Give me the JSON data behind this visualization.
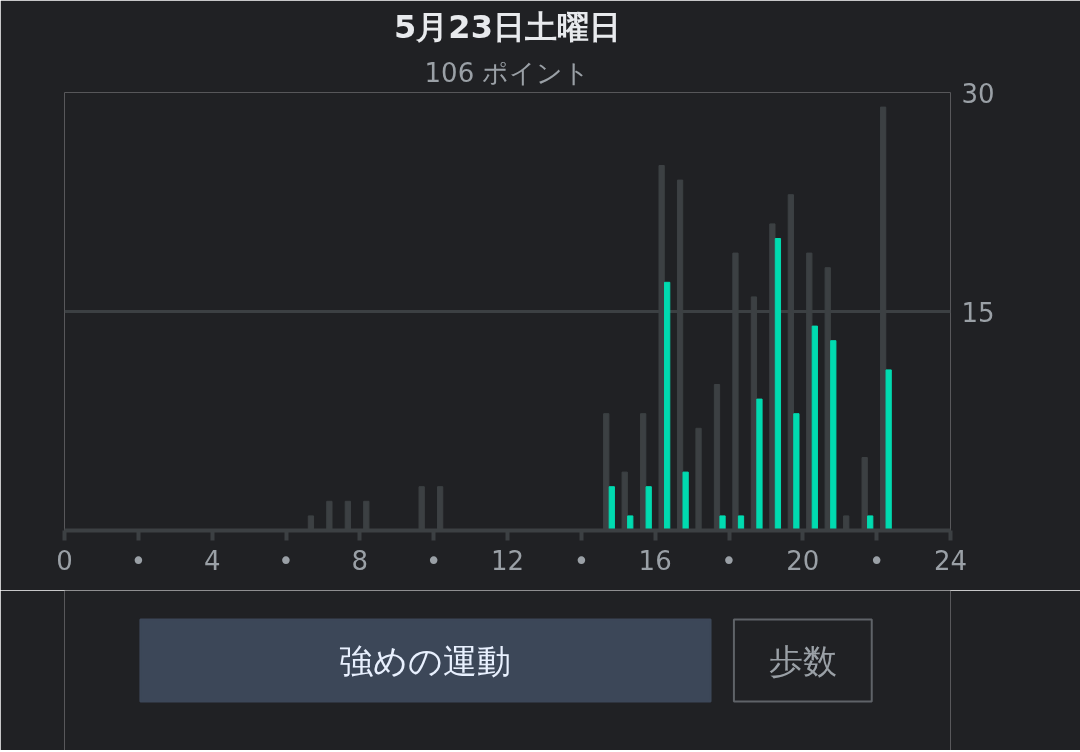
{
  "chart_data": {
    "type": "bar",
    "title": "5月23日土曜日",
    "subtitle": "106 ポイント",
    "x": [
      6.75,
      7.25,
      7.75,
      8.25,
      9.75,
      10.25,
      14.75,
      15.25,
      15.75,
      16.25,
      16.75,
      17.25,
      17.75,
      18.25,
      18.75,
      19.25,
      19.75,
      20.25,
      20.75,
      21.25,
      21.75,
      22.25
    ],
    "series": [
      {
        "color": "#3c4043",
        "values": [
          1,
          2,
          2,
          2,
          3,
          3,
          8,
          4,
          8,
          25,
          24,
          7,
          10,
          19,
          16,
          21,
          23,
          19,
          18,
          1,
          5,
          29
        ]
      },
      {
        "color": "#00dbb0",
        "values": [
          null,
          null,
          null,
          null,
          null,
          null,
          3,
          1,
          3,
          17,
          4,
          null,
          1,
          1,
          9,
          20,
          8,
          14,
          13,
          null,
          1,
          11
        ]
      }
    ],
    "xlim": [
      0,
      24
    ],
    "xticks": [
      0,
      {
        "value": 2,
        "label": "•"
      },
      4,
      {
        "value": 6,
        "label": "•"
      },
      8,
      {
        "value": 10,
        "label": "•"
      },
      12,
      {
        "value": 14,
        "label": "•"
      },
      16,
      {
        "value": 18,
        "label": "•"
      },
      20,
      {
        "value": 22,
        "label": "•"
      },
      24
    ],
    "ylim": [
      0,
      30
    ],
    "yticks": [
      15,
      30
    ],
    "grid": "y",
    "annotations": [
      "強めの運動",
      "歩数"
    ]
  }
}
